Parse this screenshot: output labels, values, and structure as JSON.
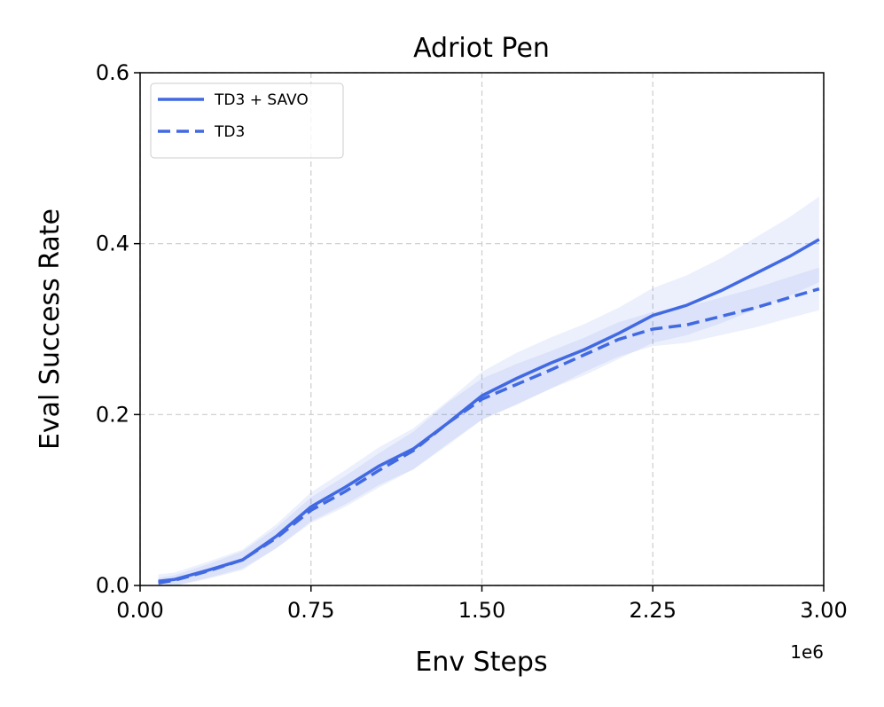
{
  "chart_data": {
    "type": "line",
    "title": "Adriot Pen",
    "x_label": "Env Steps",
    "y_label": "Eval Success Rate",
    "x_offset_label": "1e6",
    "xlim": [
      0,
      3
    ],
    "ylim": [
      0,
      0.6
    ],
    "xticks": [
      {
        "value": 0,
        "label": "0.00"
      },
      0.75,
      {
        "value": 1.5,
        "label": "1.50"
      },
      2.25,
      {
        "value": 3,
        "label": "3.00"
      }
    ],
    "yticks": [
      {
        "value": 0,
        "label": "0.0"
      },
      0.2,
      0.4,
      0.6
    ],
    "grid": true,
    "legend": "upper left",
    "x": [
      0.08,
      0.15,
      0.3,
      0.45,
      0.6,
      0.75,
      0.9,
      1.05,
      1.2,
      1.35,
      1.5,
      1.65,
      1.8,
      1.95,
      2.1,
      2.25,
      2.4,
      2.55,
      2.7,
      2.85,
      2.98
    ],
    "series": [
      {
        "name": "TD3 + SAVO",
        "color": "#4169e1",
        "linestyle": "solid",
        "values": [
          0.005,
          0.007,
          0.018,
          0.03,
          0.058,
          0.092,
          0.115,
          0.14,
          0.16,
          0.19,
          0.222,
          0.242,
          0.26,
          0.276,
          0.295,
          0.316,
          0.328,
          0.345,
          0.365,
          0.385,
          0.405
        ],
        "upper": [
          0.013,
          0.015,
          0.028,
          0.042,
          0.072,
          0.109,
          0.135,
          0.162,
          0.184,
          0.216,
          0.25,
          0.272,
          0.29,
          0.306,
          0.325,
          0.348,
          0.363,
          0.383,
          0.407,
          0.431,
          0.455
        ],
        "lower": [
          -0.003,
          -0.001,
          0.008,
          0.018,
          0.044,
          0.075,
          0.095,
          0.118,
          0.136,
          0.164,
          0.194,
          0.212,
          0.23,
          0.246,
          0.265,
          0.284,
          0.293,
          0.307,
          0.323,
          0.339,
          0.355
        ]
      },
      {
        "name": "TD3",
        "color": "#4169e1",
        "linestyle": "dashed",
        "values": [
          0.003,
          0.006,
          0.017,
          0.03,
          0.056,
          0.088,
          0.11,
          0.135,
          0.158,
          0.19,
          0.218,
          0.235,
          0.252,
          0.27,
          0.288,
          0.3,
          0.305,
          0.315,
          0.325,
          0.337,
          0.347
        ],
        "upper": [
          0.009,
          0.012,
          0.025,
          0.04,
          0.068,
          0.103,
          0.128,
          0.155,
          0.18,
          0.214,
          0.242,
          0.259,
          0.274,
          0.29,
          0.308,
          0.32,
          0.326,
          0.337,
          0.348,
          0.361,
          0.372
        ],
        "lower": [
          -0.003,
          0,
          0.009,
          0.02,
          0.044,
          0.073,
          0.092,
          0.115,
          0.136,
          0.166,
          0.194,
          0.211,
          0.23,
          0.25,
          0.268,
          0.28,
          0.284,
          0.293,
          0.302,
          0.313,
          0.322
        ]
      }
    ]
  }
}
